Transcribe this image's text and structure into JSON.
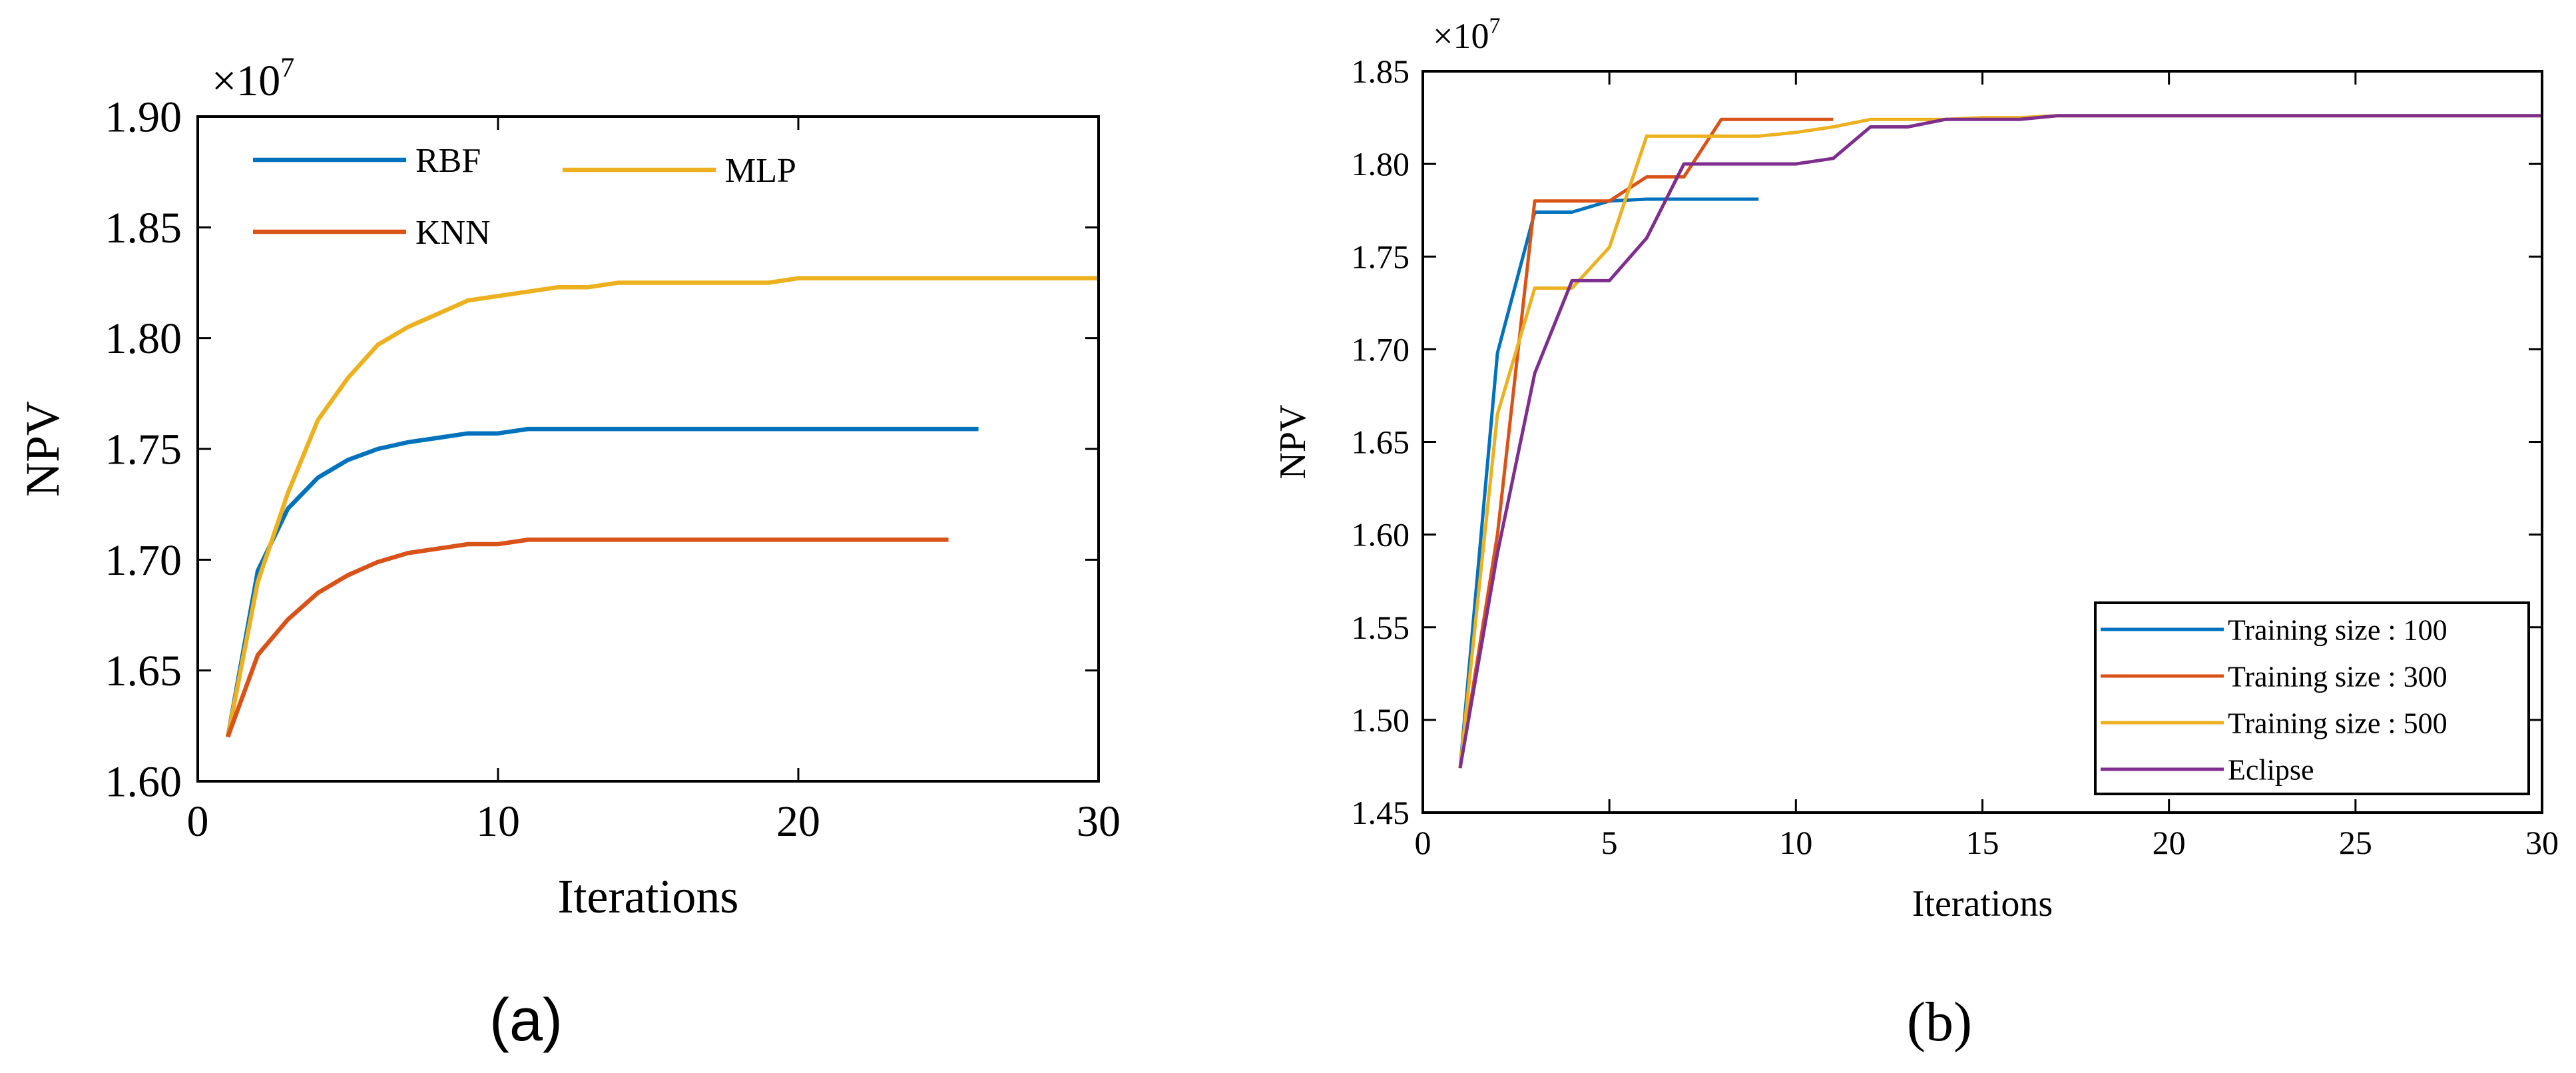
{
  "chart_data": [
    {
      "type": "line",
      "panel_label": "(a)",
      "title": "",
      "xlabel": "Iterations",
      "ylabel": "NPV",
      "exponent_label": "×10",
      "exponent_power": "7",
      "xlim": [
        0,
        30
      ],
      "ylim": [
        1.6,
        1.9
      ],
      "xticks": [
        0,
        10,
        20,
        30
      ],
      "yticks": [
        1.6,
        1.65,
        1.7,
        1.75,
        1.8,
        1.85,
        1.9
      ],
      "ytick_decimals": 2,
      "grid": false,
      "legend_placement": "top-left",
      "series": [
        {
          "name": "RBF",
          "color": "#0072BD",
          "x": [
            1,
            2,
            3,
            4,
            5,
            6,
            7,
            8,
            9,
            10,
            11,
            12,
            13,
            14,
            15,
            16,
            17,
            18,
            19,
            20,
            21,
            22,
            23,
            24,
            25,
            26
          ],
          "values": [
            1.62,
            1.695,
            1.723,
            1.737,
            1.745,
            1.75,
            1.753,
            1.755,
            1.757,
            1.757,
            1.759,
            1.759,
            1.759,
            1.759,
            1.759,
            1.759,
            1.759,
            1.759,
            1.759,
            1.759,
            1.759,
            1.759,
            1.759,
            1.759,
            1.759,
            1.759
          ]
        },
        {
          "name": "MLP",
          "color": "#EDB120",
          "x": [
            1,
            2,
            3,
            4,
            5,
            6,
            7,
            8,
            9,
            10,
            11,
            12,
            13,
            14,
            15,
            16,
            17,
            18,
            19,
            20,
            21,
            22,
            23,
            24,
            25,
            26,
            27,
            28,
            29,
            30
          ],
          "values": [
            1.62,
            1.69,
            1.73,
            1.763,
            1.782,
            1.797,
            1.805,
            1.811,
            1.817,
            1.819,
            1.821,
            1.823,
            1.823,
            1.825,
            1.825,
            1.825,
            1.825,
            1.825,
            1.825,
            1.827,
            1.827,
            1.827,
            1.827,
            1.827,
            1.827,
            1.827,
            1.827,
            1.827,
            1.827,
            1.827
          ]
        },
        {
          "name": "KNN",
          "color": "#D95319",
          "x": [
            1,
            2,
            3,
            4,
            5,
            6,
            7,
            8,
            9,
            10,
            11,
            12,
            13,
            14,
            15,
            16,
            17,
            18,
            19,
            20,
            21,
            22,
            23,
            24,
            25
          ],
          "values": [
            1.62,
            1.657,
            1.673,
            1.685,
            1.693,
            1.699,
            1.703,
            1.705,
            1.707,
            1.707,
            1.709,
            1.709,
            1.709,
            1.709,
            1.709,
            1.709,
            1.709,
            1.709,
            1.709,
            1.709,
            1.709,
            1.709,
            1.709,
            1.709,
            1.709
          ]
        }
      ]
    },
    {
      "type": "line",
      "panel_label": "(b)",
      "title": "",
      "xlabel": "Iterations",
      "ylabel": "NPV",
      "exponent_label": "×10",
      "exponent_power": "7",
      "xlim": [
        0,
        30
      ],
      "ylim": [
        1.45,
        1.85
      ],
      "xticks": [
        0,
        5,
        10,
        15,
        20,
        25,
        30
      ],
      "yticks": [
        1.45,
        1.5,
        1.55,
        1.6,
        1.65,
        1.7,
        1.75,
        1.8,
        1.85
      ],
      "ytick_decimals": 2,
      "grid": false,
      "legend_placement": "bottom-right",
      "series": [
        {
          "name": "Training size : 100",
          "color": "#0072BD",
          "x": [
            1,
            2,
            3,
            4,
            5,
            6,
            7,
            8,
            9
          ],
          "values": [
            1.474,
            1.698,
            1.774,
            1.774,
            1.78,
            1.781,
            1.781,
            1.781,
            1.781
          ]
        },
        {
          "name": "Training size : 300",
          "color": "#D95319",
          "x": [
            1,
            2,
            3,
            4,
            5,
            6,
            7,
            8,
            9,
            10,
            11
          ],
          "values": [
            1.474,
            1.6,
            1.78,
            1.78,
            1.78,
            1.793,
            1.793,
            1.824,
            1.824,
            1.824,
            1.824
          ]
        },
        {
          "name": "Training size : 500",
          "color": "#EDB120",
          "x": [
            1,
            2,
            3,
            4,
            5,
            6,
            7,
            8,
            9,
            10,
            11,
            12,
            13,
            14,
            15,
            16,
            17,
            18,
            19,
            20,
            21,
            22,
            23,
            24,
            25,
            26,
            27,
            28,
            29,
            30
          ],
          "values": [
            1.474,
            1.665,
            1.733,
            1.733,
            1.755,
            1.815,
            1.815,
            1.815,
            1.815,
            1.817,
            1.82,
            1.824,
            1.824,
            1.824,
            1.825,
            1.825,
            1.826,
            1.826,
            1.826,
            1.826,
            1.826,
            1.826,
            1.826,
            1.826,
            1.826,
            1.826,
            1.826,
            1.826,
            1.826,
            1.826
          ]
        },
        {
          "name": "Eclipse",
          "color": "#7E2F8E",
          "x": [
            1,
            2,
            3,
            4,
            5,
            6,
            7,
            8,
            9,
            10,
            11,
            12,
            13,
            14,
            15,
            16,
            17,
            18,
            19,
            20,
            21,
            22,
            23,
            24,
            25,
            26,
            27,
            28,
            29,
            30
          ],
          "values": [
            1.474,
            1.59,
            1.687,
            1.737,
            1.737,
            1.76,
            1.8,
            1.8,
            1.8,
            1.8,
            1.803,
            1.82,
            1.82,
            1.824,
            1.824,
            1.824,
            1.826,
            1.826,
            1.826,
            1.826,
            1.826,
            1.826,
            1.826,
            1.826,
            1.826,
            1.826,
            1.826,
            1.826,
            1.826,
            1.826
          ]
        }
      ]
    }
  ]
}
